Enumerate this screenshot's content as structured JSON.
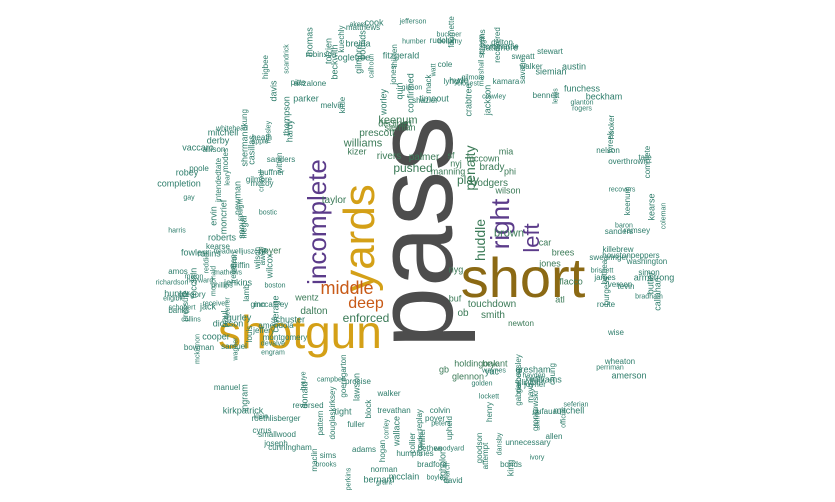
{
  "colors": {
    "large": "#4d4d4d",
    "gold": "#d4a017",
    "brown": "#8b6914",
    "purple": "#5b3b8a",
    "orange": "#c85a17",
    "teal": "#2e7d6b",
    "green": "#3b7a57"
  },
  "words": {
    "pass": "pass",
    "short": "short",
    "shotgun": "shotgun",
    "yards": "yards",
    "incomplete": "incomplete",
    "right": "right",
    "left": "left",
    "middle": "middle",
    "deep": "deep",
    "enforced": "enforced",
    "pushed": "pushed",
    "play": "play",
    "huddle": "huddle",
    "penalty": "penalty",
    "brown": "brown",
    "touchdown": "touchdown",
    "keenum": "keenum",
    "brady": "brady",
    "rodgers": "rodgers",
    "williams": "williams",
    "prescott": "prescott",
    "taylor": "taylor",
    "smith": "smith",
    "dalton": "dalton",
    "wentz": "wentz",
    "palmer": "palmer",
    "rivers": "rivers",
    "kizer": "kizer",
    "ob": "ob",
    "hoyer": "hoyer",
    "jones": "jones",
    "flacco": "flacco",
    "brees": "brees",
    "mccown": "mccown",
    "holdingoak": "holdingoak",
    "manning": "manning",
    "wilson": "wilson",
    "newton": "newton",
    "glennon": "glennon",
    "declined": "declined",
    "bryant": "bryant",
    "siemian": "siemian",
    "mia": "mia",
    "gb": "gb",
    "nyj": "nyj",
    "nyg": "nyg",
    "car": "car",
    "buf": "buf",
    "phi": "phi",
    "atl": "atl",
    "sf": "sf",
    "ten": "ten",
    "min": "min",
    "kc": "kc",
    "ari": "ari",
    "jax": "jax",
    "den": "den",
    "ne": "ne",
    "small_words": [
      "reddick",
      "paul",
      "casillas",
      "treadwelljuszczyk",
      "leary",
      "complete",
      "samuel",
      "ivory",
      "newman",
      "donald",
      "boyle",
      "heath",
      "hayden",
      "route",
      "dickson",
      "fleener",
      "confirmed",
      "austin",
      "humber",
      "douglaskirksey",
      "tolzien",
      "swearinger",
      "amerson",
      "sherman",
      "breida",
      "church",
      "gay",
      "away",
      "peters",
      "waynes",
      "montgomery",
      "washington",
      "cunningham",
      "wallace",
      "henry",
      "gurley",
      "moncrief",
      "anzalone",
      "banks",
      "fowler",
      "completion",
      "mccaffrey",
      "parker",
      "kearse",
      "eligible",
      "kittle",
      "prosise",
      "burgess",
      "agholor",
      "apple",
      "reversed",
      "griffin",
      "goeregarton",
      "receiver",
      "devalve",
      "seferian",
      "spaight",
      "thielen",
      "beckham",
      "marshall",
      "mitchell",
      "conley",
      "nelson",
      "hogan",
      "keenum",
      "intendedtate",
      "sweatt",
      "mosley",
      "kirkpatrick",
      "collins",
      "replay",
      "joseph",
      "bostic",
      "freeman",
      "gilmore",
      "wilson",
      "boston",
      "cooper",
      "yac",
      "siemian",
      "brissett",
      "thompson",
      "sanders",
      "chung",
      "rollins",
      "mayo",
      "sims",
      "roethlisberger",
      "lynch",
      "pressure",
      "jeffery",
      "attempt",
      "shazier",
      "killebrew",
      "vereen",
      "simon",
      "timeout",
      "fuller",
      "ingram",
      "modes",
      "sanu",
      "hardy",
      "bradford",
      "jefferson",
      "perkins",
      "woodyard",
      "collier",
      "tevin",
      "rogers",
      "williams",
      "derby",
      "colvin",
      "gilmore",
      "brooks",
      "tight",
      "mack",
      "poole",
      "cromartie",
      "beckwith",
      "phillips",
      "bouye",
      "gabrielbeasley",
      "campbell",
      "pattern",
      "stewart",
      "crowder",
      "davis",
      "matthews",
      "allison",
      "manuel",
      "coleman",
      "hyde",
      "crabtree",
      "dalton",
      "quin",
      "goodson",
      "bowman",
      "watt",
      "engram",
      "david",
      "scandrick",
      "amendola",
      "mckinnon",
      "roberts",
      "screen",
      "bernard",
      "thomas",
      "james",
      "lewis",
      "joyner",
      "buckner",
      "bennett",
      "mccoy",
      "gilmore",
      "kamara",
      "ginn",
      "hunter",
      "bradham",
      "jenkins",
      "adams",
      "walker",
      "bethea",
      "poyer",
      "grant",
      "mcclain",
      "richardson",
      "bounds",
      "robinson",
      "illegal",
      "upheld",
      "harris",
      "wagner",
      "hayward",
      "higbee",
      "savage",
      "kerley",
      "fitzgerald",
      "coverage",
      "funchess",
      "lamb",
      "official",
      "mcclain",
      "vaccaro",
      "recovered",
      "schobert",
      "houstonpeppers",
      "king",
      "gronkowski",
      "melvin",
      "cook",
      "humphries",
      "recovers",
      "callahan",
      "unnecessary",
      "smallwood",
      "lattimore",
      "perriman",
      "dufauau",
      "schuster",
      "hooker",
      "skrine",
      "crawley",
      "block",
      "norman",
      "amos",
      "armstrong",
      "clinton",
      "glanton",
      "bellamy",
      "fournette",
      "closest",
      "overthrown",
      "klein",
      "wilcox",
      "whitehead",
      "trevathan",
      "bethea",
      "lawson",
      "ervin",
      "mitchell",
      "sanders",
      "ogletree",
      "mcdonald",
      "golden",
      "rudolph",
      "gresham",
      "mathews",
      "akers",
      "gregory",
      "mixon",
      "cole",
      "jack",
      "wheaton",
      "gipson",
      "higgins",
      "ramsey",
      "pitts",
      "robey",
      "dansby",
      "kuechly",
      "wise",
      "butler",
      "witten",
      "maclin",
      "allen",
      "baron",
      "miller",
      "okung",
      "worley",
      "crowell",
      "garcon",
      "tate",
      "tyreek",
      "jackson",
      "kearse",
      "lockett",
      "buffner",
      "bonds",
      "jones",
      "ebron",
      "calhoun",
      "walker",
      "cyrus",
      "louis"
    ]
  }
}
